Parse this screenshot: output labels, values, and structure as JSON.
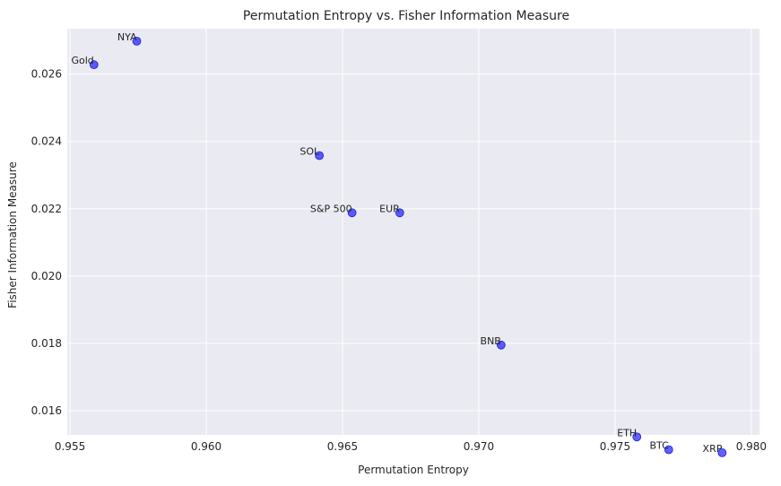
{
  "chart_data": {
    "type": "scatter",
    "title": "Permutation Entropy vs. Fisher Information Measure",
    "xlabel": "Permutation Entropy",
    "ylabel": "Fisher Information Measure",
    "xlim": [
      0.9549,
      0.9803
    ],
    "ylim": [
      0.01528,
      0.02735
    ],
    "xticks": [
      0.955,
      0.96,
      0.965,
      0.97,
      0.975,
      0.98
    ],
    "xtick_labels": [
      "0.955",
      "0.960",
      "0.965",
      "0.970",
      "0.975",
      "0.980"
    ],
    "yticks": [
      0.016,
      0.018,
      0.02,
      0.022,
      0.024,
      0.026
    ],
    "ytick_labels": [
      "0.016",
      "0.018",
      "0.020",
      "0.022",
      "0.024",
      "0.026"
    ],
    "grid": true,
    "background": "#eaeaf2",
    "point_color": "#0000ff",
    "points": [
      {
        "label": "NYA",
        "x": 0.95745,
        "y": 0.02698
      },
      {
        "label": "Gold",
        "x": 0.95588,
        "y": 0.02628
      },
      {
        "label": "SOL",
        "x": 0.96415,
        "y": 0.02358
      },
      {
        "label": "S&P 500",
        "x": 0.96535,
        "y": 0.02188
      },
      {
        "label": "EUR",
        "x": 0.9671,
        "y": 0.02188
      },
      {
        "label": "BNB",
        "x": 0.97082,
        "y": 0.01795
      },
      {
        "label": "ETH",
        "x": 0.9758,
        "y": 0.01522
      },
      {
        "label": "BTC",
        "x": 0.97697,
        "y": 0.01484
      },
      {
        "label": "XRP",
        "x": 0.97893,
        "y": 0.01475
      }
    ]
  }
}
